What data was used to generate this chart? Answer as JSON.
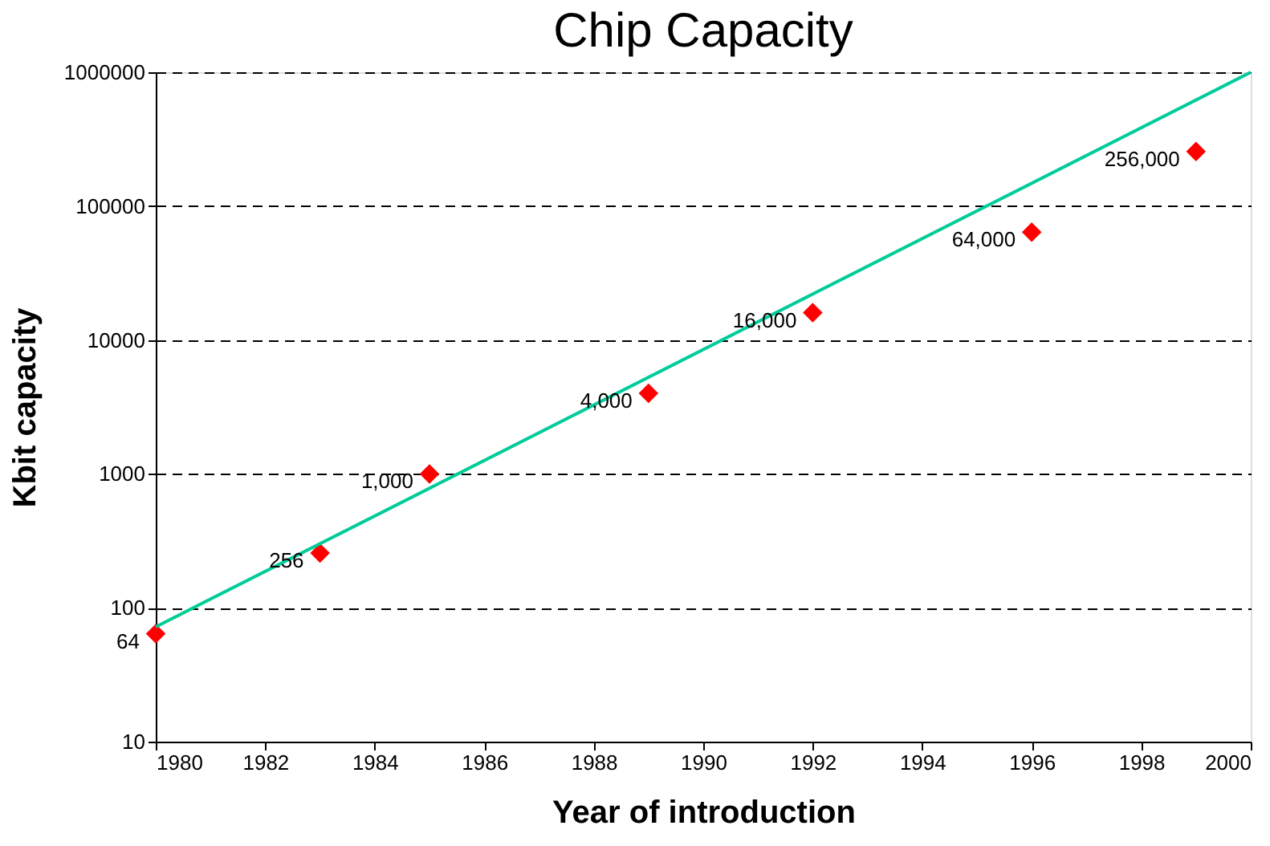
{
  "chart_data": {
    "type": "scatter",
    "title": "Chip Capacity",
    "xlabel": "Year of introduction",
    "ylabel": "Kbit capacity",
    "series": [
      {
        "color": "#ff0000",
        "marker": "diamond",
        "x": [
          1980,
          1983,
          1985,
          1989,
          1992,
          1996,
          1999
        ],
        "values": [
          64,
          256,
          1000,
          4000,
          16000,
          64000,
          256000
        ],
        "value_labels": [
          "64",
          "256",
          "1,000",
          "4,000",
          "16,000",
          "64,000",
          "256,000"
        ]
      },
      {
        "type": "line",
        "color": "#00cc99",
        "marker": "none",
        "line_style": "solid",
        "x": [
          1980,
          2000
        ],
        "values": [
          72,
          1000000
        ]
      }
    ],
    "log": "y",
    "xlim": [
      1980,
      2000
    ],
    "xticks": [
      1980,
      1982,
      1984,
      1986,
      1988,
      1990,
      1992,
      1994,
      1996,
      1998,
      2000
    ],
    "ylim": [
      10,
      1000000
    ],
    "yticks": [
      10,
      100,
      1000,
      10000,
      100000,
      1000000
    ],
    "grid": "y"
  }
}
